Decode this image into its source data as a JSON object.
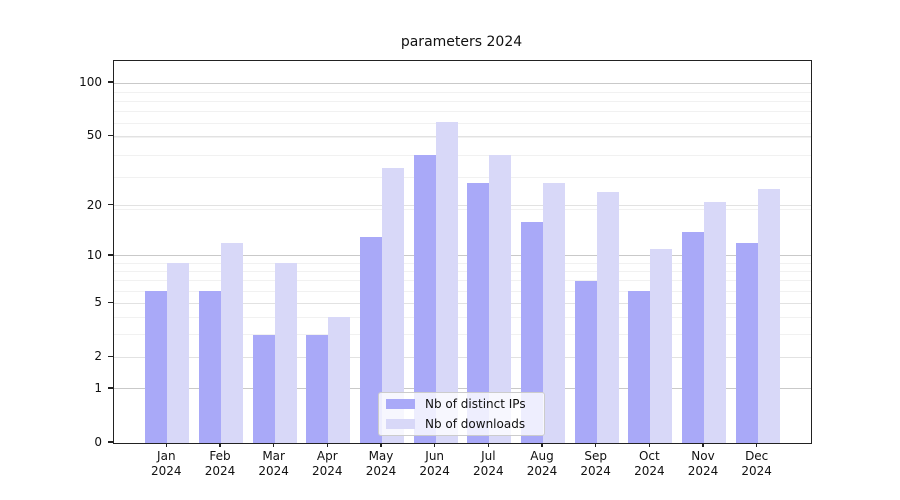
{
  "chart_data": {
    "type": "bar",
    "title": "parameters 2024",
    "scale": "log10(1+value)",
    "categories": [
      "Jan",
      "Feb",
      "Mar",
      "Apr",
      "May",
      "Jun",
      "Jul",
      "Aug",
      "Sep",
      "Oct",
      "Nov",
      "Dec"
    ],
    "category_year": "2024",
    "series": [
      {
        "name": "Nb of distinct IPs",
        "color": "#a9a9f8",
        "values": [
          6,
          6,
          3,
          3,
          13,
          39,
          27,
          16,
          7,
          6,
          14,
          12
        ]
      },
      {
        "name": "Nb of downloads",
        "color": "#d8d8f8",
        "values": [
          9,
          12,
          9,
          4,
          33,
          60,
          39,
          27,
          24,
          11,
          21,
          25
        ]
      }
    ],
    "yticks": [
      0,
      1,
      2,
      5,
      10,
      20,
      50,
      100
    ],
    "ylim": [
      0,
      133
    ],
    "xlabel": "",
    "ylabel": "",
    "grid": true,
    "legend_position": "bottom-center-inside"
  },
  "colors": {
    "major_gridline": "#c9c9c9",
    "labeled_gridline": "#e2e2e2",
    "minor_gridline": "#f1f1f1",
    "axis": "#222222",
    "background": "#ffffff"
  }
}
